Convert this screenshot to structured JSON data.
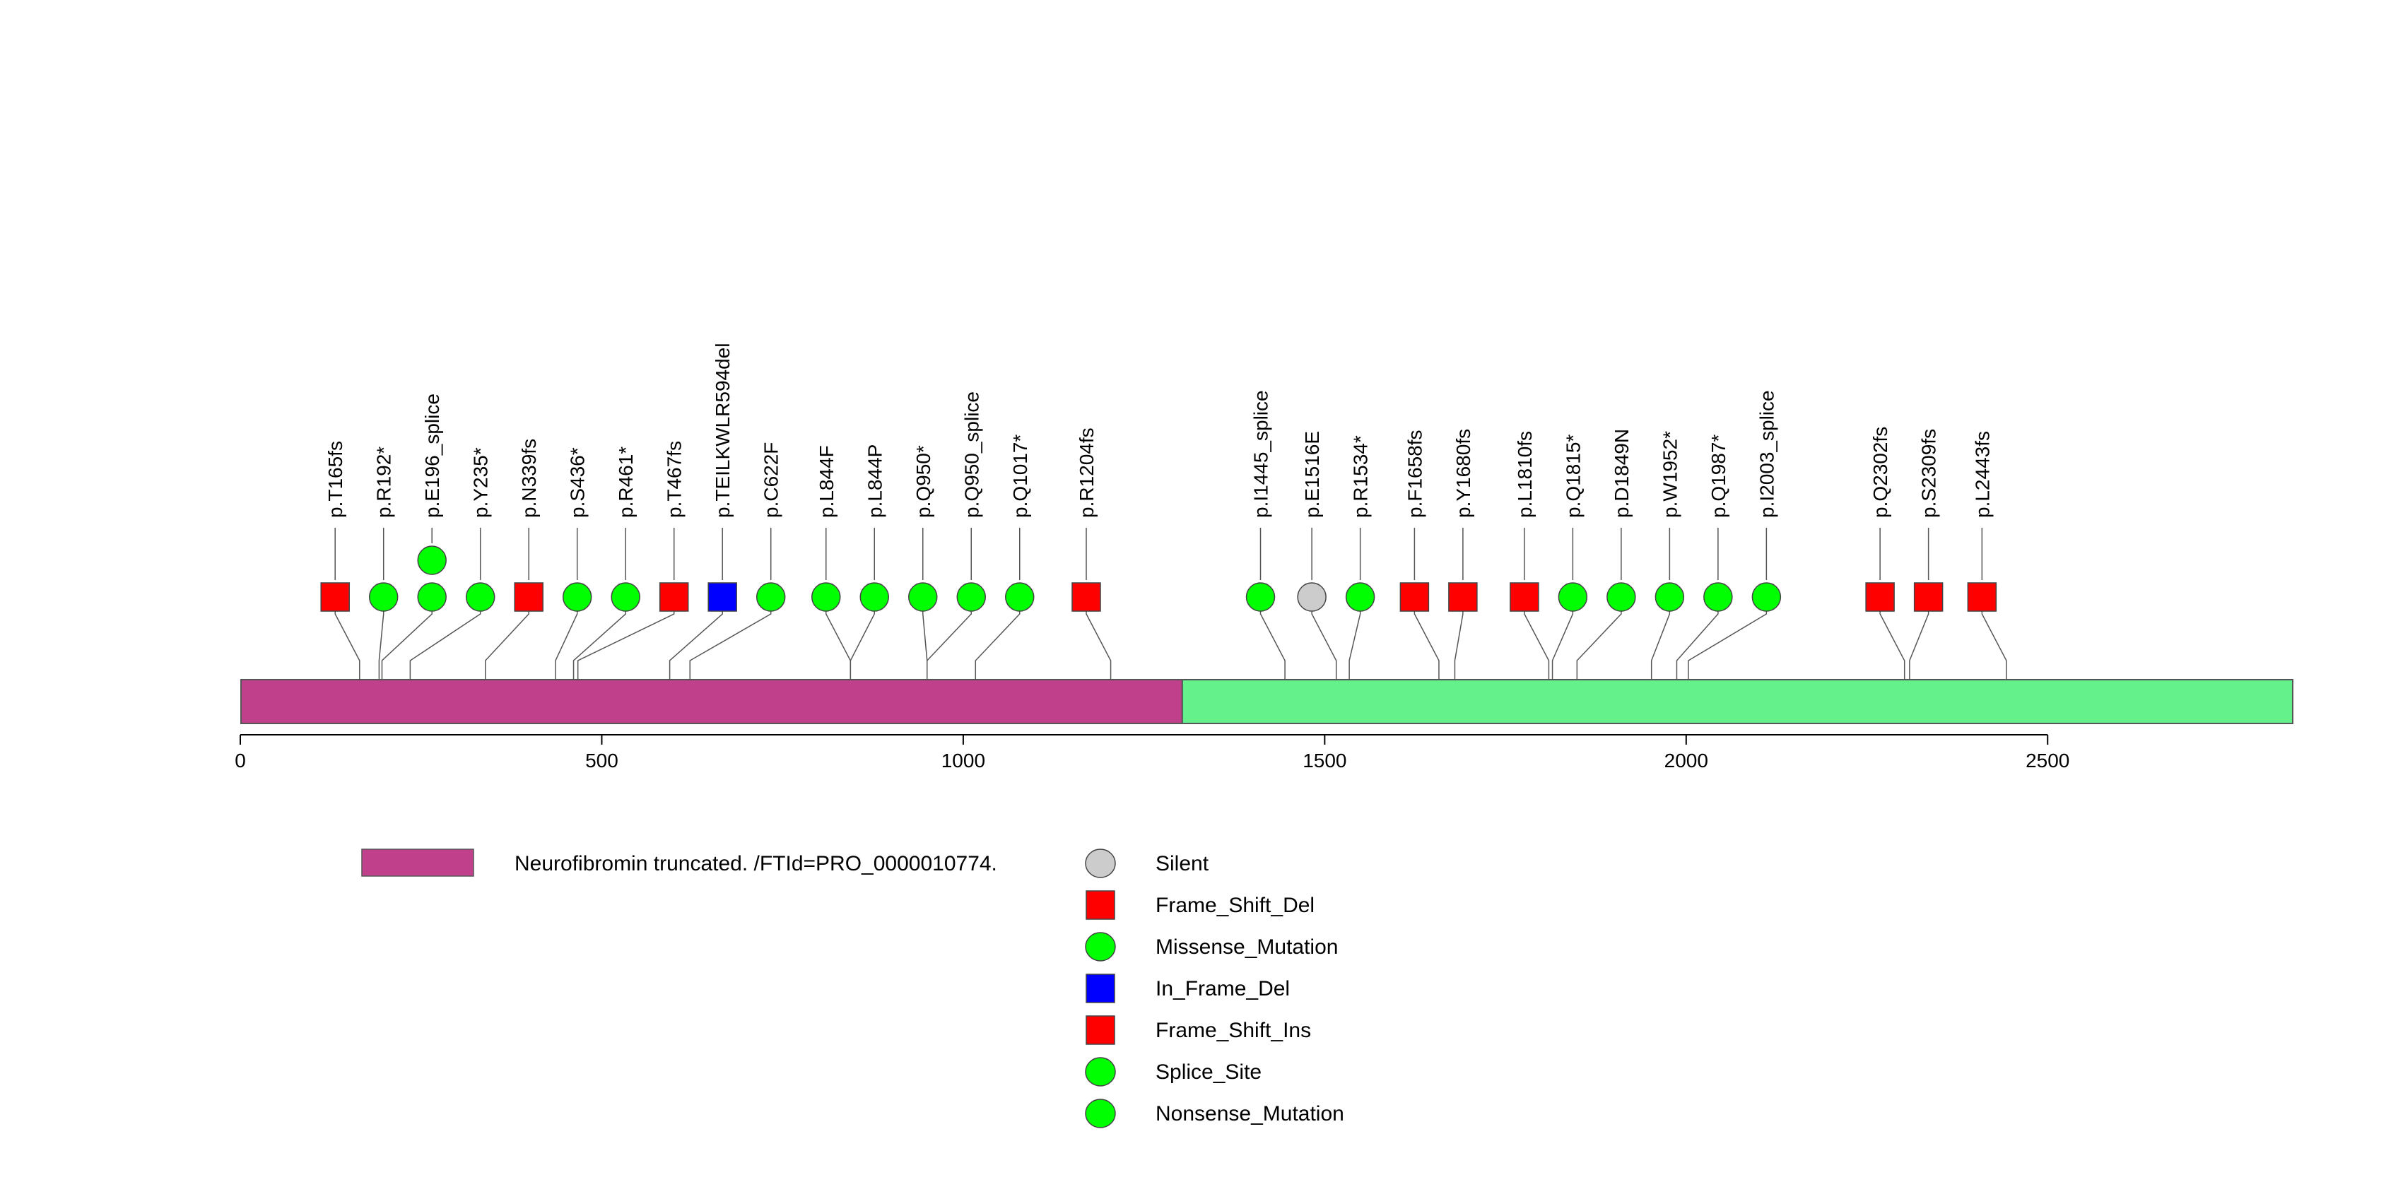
{
  "chart_data": {
    "type": "lollipop",
    "title": "",
    "xlabel": "",
    "ylabel": "",
    "protein_length": 2839,
    "x_range": [
      0,
      2839
    ],
    "x_ticks": [
      0,
      500,
      1000,
      1500,
      2000,
      2500
    ],
    "x_tick_labels": [
      "0",
      "500",
      "1000",
      "1500",
      "2000",
      "2500"
    ],
    "domains": [
      {
        "name": "Neurofibromin truncated. /FTId=PRO_0000010774.",
        "start": 1,
        "end": 1303,
        "color": "#c0408b"
      },
      {
        "name": "",
        "start": 1303,
        "end": 2839,
        "color": "#64f08a"
      }
    ],
    "mutations": [
      {
        "label": "p.T165fs",
        "position": 165,
        "type": "Frame_Shift_Del",
        "count": 1
      },
      {
        "label": "p.R192*",
        "position": 192,
        "type": "Nonsense_Mutation",
        "count": 1
      },
      {
        "label": "p.E196_splice",
        "position": 196,
        "type": "Splice_Site",
        "count": 2
      },
      {
        "label": "p.Y235*",
        "position": 235,
        "type": "Nonsense_Mutation",
        "count": 1
      },
      {
        "label": "p.N339fs",
        "position": 339,
        "type": "Frame_Shift_Del",
        "count": 1
      },
      {
        "label": "p.S436*",
        "position": 436,
        "type": "Nonsense_Mutation",
        "count": 1
      },
      {
        "label": "p.R461*",
        "position": 461,
        "type": "Nonsense_Mutation",
        "count": 1
      },
      {
        "label": "p.T467fs",
        "position": 467,
        "type": "Frame_Shift_Ins",
        "count": 1
      },
      {
        "label": "p.TEILKWLR594del",
        "position": 594,
        "type": "In_Frame_Del",
        "count": 1
      },
      {
        "label": "p.C622F",
        "position": 622,
        "type": "Missense_Mutation",
        "count": 1
      },
      {
        "label": "p.L844F",
        "position": 844,
        "type": "Missense_Mutation",
        "count": 1
      },
      {
        "label": "p.L844P",
        "position": 844,
        "type": "Missense_Mutation",
        "count": 1
      },
      {
        "label": "p.Q950*",
        "position": 950,
        "type": "Nonsense_Mutation",
        "count": 1
      },
      {
        "label": "p.Q950_splice",
        "position": 950,
        "type": "Splice_Site",
        "count": 1
      },
      {
        "label": "p.Q1017*",
        "position": 1017,
        "type": "Nonsense_Mutation",
        "count": 1
      },
      {
        "label": "p.R1204fs",
        "position": 1204,
        "type": "Frame_Shift_Del",
        "count": 1
      },
      {
        "label": "p.I1445_splice",
        "position": 1445,
        "type": "Splice_Site",
        "count": 1
      },
      {
        "label": "p.E1516E",
        "position": 1516,
        "type": "Silent",
        "count": 1
      },
      {
        "label": "p.R1534*",
        "position": 1534,
        "type": "Nonsense_Mutation",
        "count": 1
      },
      {
        "label": "p.F1658fs",
        "position": 1658,
        "type": "Frame_Shift_Del",
        "count": 1
      },
      {
        "label": "p.Y1680fs",
        "position": 1680,
        "type": "Frame_Shift_Del",
        "count": 1
      },
      {
        "label": "p.L1810fs",
        "position": 1810,
        "type": "Frame_Shift_Del",
        "count": 1
      },
      {
        "label": "p.Q1815*",
        "position": 1815,
        "type": "Nonsense_Mutation",
        "count": 1
      },
      {
        "label": "p.D1849N",
        "position": 1849,
        "type": "Missense_Mutation",
        "count": 1
      },
      {
        "label": "p.W1952*",
        "position": 1952,
        "type": "Nonsense_Mutation",
        "count": 1
      },
      {
        "label": "p.Q1987*",
        "position": 1987,
        "type": "Nonsense_Mutation",
        "count": 1
      },
      {
        "label": "p.I2003_splice",
        "position": 2003,
        "type": "Splice_Site",
        "count": 1
      },
      {
        "label": "p.Q2302fs",
        "position": 2302,
        "type": "Frame_Shift_Del",
        "count": 1
      },
      {
        "label": "p.S2309fs",
        "position": 2309,
        "type": "Frame_Shift_Del",
        "count": 1
      },
      {
        "label": "p.L2443fs",
        "position": 2443,
        "type": "Frame_Shift_Del",
        "count": 1
      }
    ],
    "legend": {
      "domain": {
        "label": "Neurofibromin truncated. /FTId=PRO_0000010774.",
        "color": "#c0408b"
      },
      "types": [
        {
          "type": "Silent",
          "label": "Silent",
          "shape": "circle",
          "color": "#cccccc"
        },
        {
          "type": "Frame_Shift_Del",
          "label": "Frame_Shift_Del",
          "shape": "square",
          "color": "#ff0000"
        },
        {
          "type": "Missense_Mutation",
          "label": "Missense_Mutation",
          "shape": "circle",
          "color": "#00ff00"
        },
        {
          "type": "In_Frame_Del",
          "label": "In_Frame_Del",
          "shape": "square",
          "color": "#0000ff"
        },
        {
          "type": "Frame_Shift_Ins",
          "label": "Frame_Shift_Ins",
          "shape": "square",
          "color": "#ff0000"
        },
        {
          "type": "Splice_Site",
          "label": "Splice_Site",
          "shape": "circle",
          "color": "#00ff00"
        },
        {
          "type": "Nonsense_Mutation",
          "label": "Nonsense_Mutation",
          "shape": "circle",
          "color": "#00ff00"
        }
      ]
    }
  }
}
